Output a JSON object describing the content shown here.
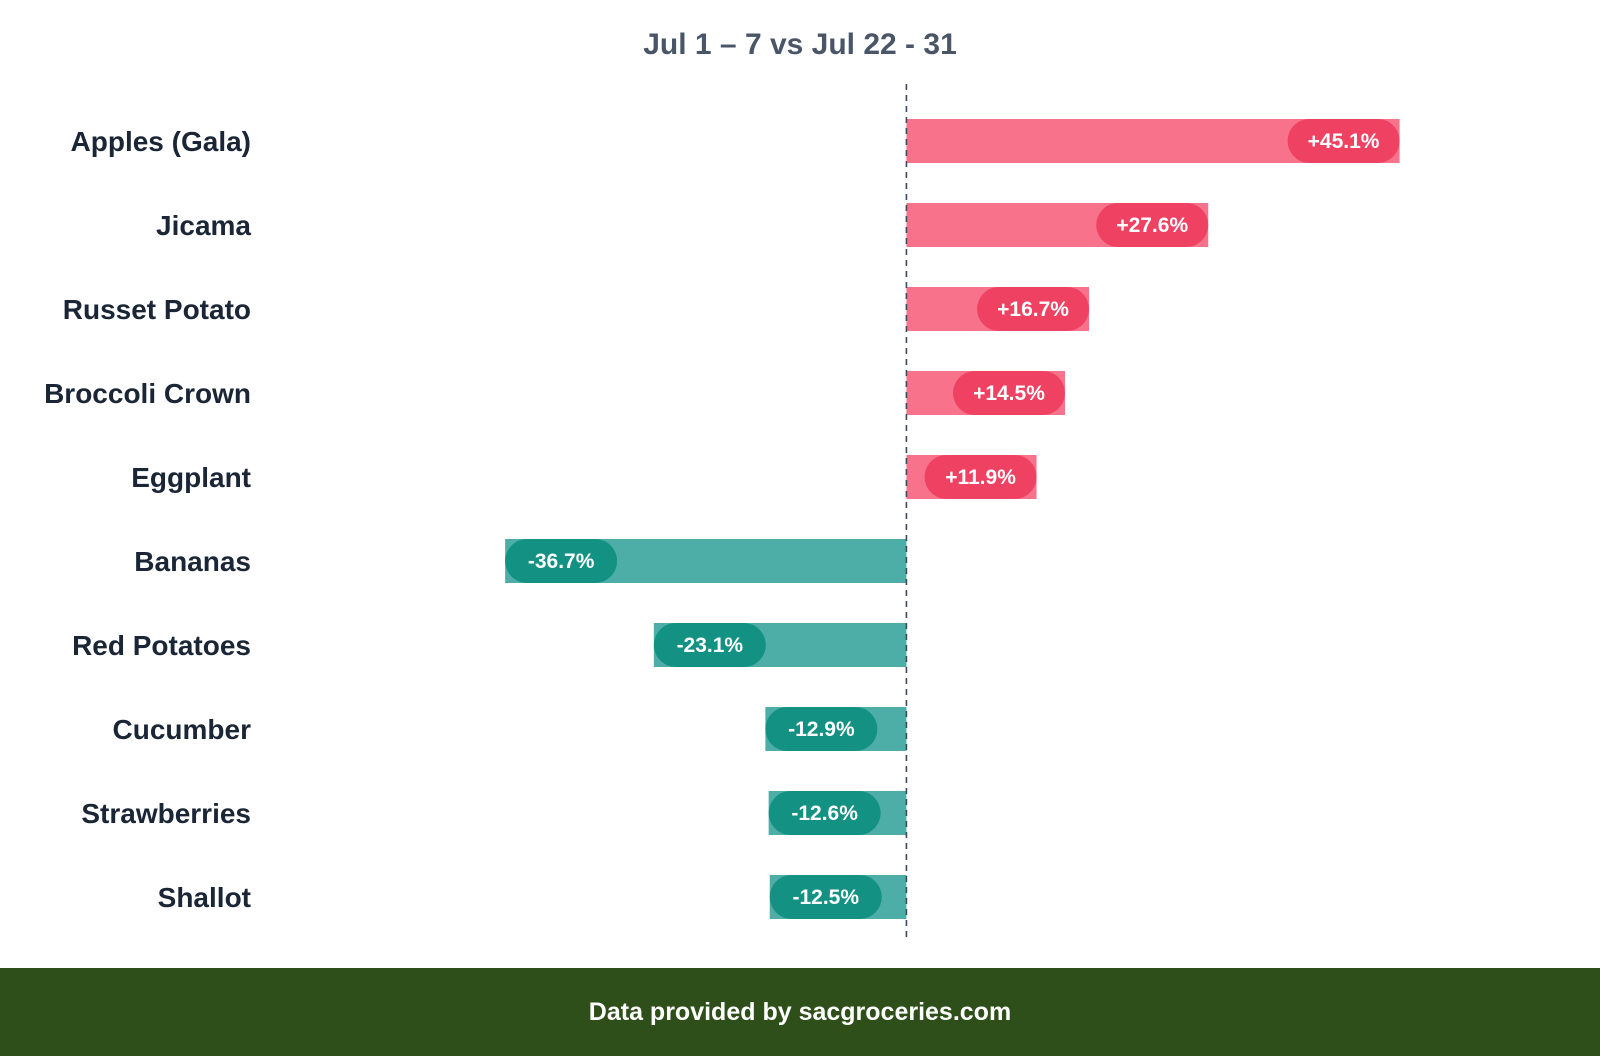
{
  "chart_data": {
    "type": "bar",
    "orientation": "horizontal",
    "title": "Jul 1 – 7 vs Jul 22 - 31",
    "categories": [
      "Apples (Gala)",
      "Jicama",
      "Russet Potato",
      "Broccoli Crown",
      "Eggplant",
      "Bananas",
      "Red Potatoes",
      "Cucumber",
      "Strawberries",
      "Shallot"
    ],
    "values": [
      45.1,
      27.6,
      16.7,
      14.5,
      11.9,
      -36.7,
      -23.1,
      -12.9,
      -12.6,
      -12.5
    ],
    "labels": [
      "+45.1%",
      "+27.6%",
      "+16.7%",
      "+14.5%",
      "+11.9%",
      "-36.7%",
      "-23.1%",
      "-12.9%",
      "-12.6%",
      "-12.5%"
    ],
    "xlim": [
      -48.6,
      54.1
    ],
    "reference_line": 0,
    "grid": false,
    "legend": "none"
  },
  "colors": {
    "positive_bar": "#f7728a",
    "positive_pill": "#ef4263",
    "negative_bar": "#4daea7",
    "negative_pill": "#139183",
    "zero_line": "#3c4a5e",
    "category_text": "#1a2536",
    "title_text": "#4a5568",
    "footer_background": "#2e4f19"
  },
  "footer": {
    "text": "Data provided by sacgroceries.com"
  }
}
